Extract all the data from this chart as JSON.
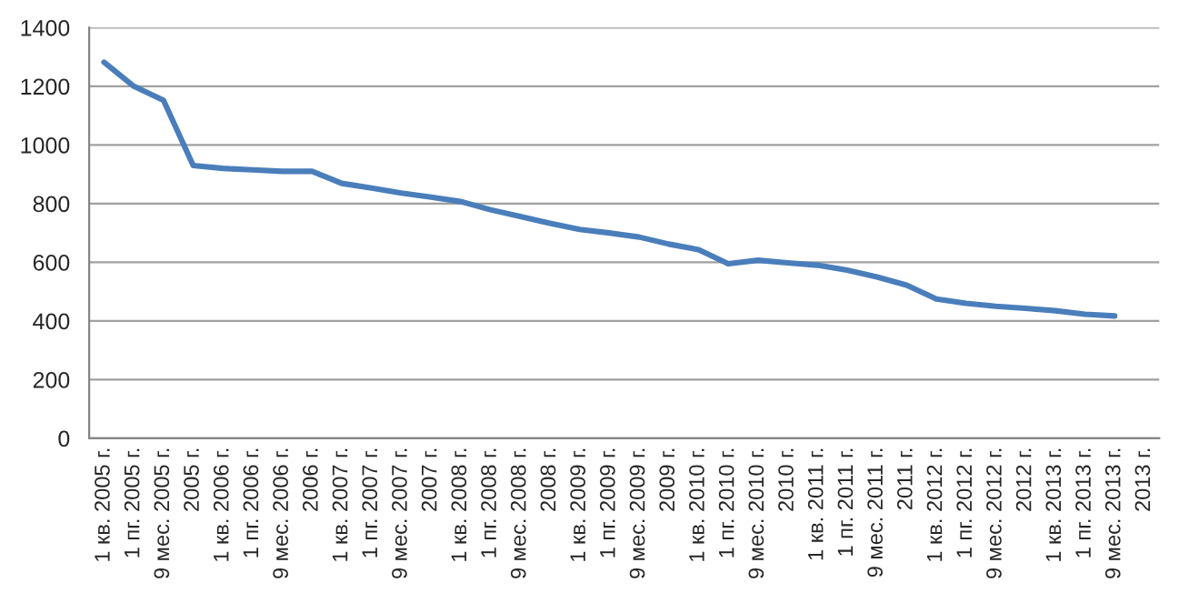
{
  "chart_data": {
    "type": "line",
    "categories": [
      "1 кв. 2005 г.",
      "1 пг. 2005 г.",
      "9 мес. 2005 г.",
      "2005 г.",
      "1 кв. 2006 г.",
      "1 пг. 2006 г.",
      "9 мес. 2006 г.",
      "2006 г.",
      "1 кв. 2007 г.",
      "1 пг. 2007 г.",
      "9 мес. 2007 г.",
      "2007 г.",
      "1 кв. 2008 г.",
      "1 пг. 2008 г.",
      "9 мес. 2008 г.",
      "2008 г.",
      "1 кв. 2009 г.",
      "1 пг. 2009 г.",
      "9 мес. 2009 г.",
      "2009 г.",
      "1 кв. 2010 г.",
      "1 пг. 2010 г.",
      "9 мес. 2010 г.",
      "2010 г.",
      "1 кв. 2011 г.",
      "1 пг. 2011 г.",
      "9 мес. 2011 г.",
      "2011 г.",
      "1 кв. 2012 г.",
      "1 пг. 2012 г.",
      "9 мес. 2012 г.",
      "2012 г.",
      "1 кв. 2013 г.",
      "1 пг. 2013 г.",
      "9 мес. 2013 г.",
      "2013 г."
    ],
    "series": [
      {
        "color": "#4a7ebb",
        "values": [
          1282,
          1200,
          1152,
          930,
          920,
          915,
          910,
          910,
          869,
          853,
          836,
          822,
          807,
          779,
          756,
          733,
          712,
          700,
          686,
          662,
          643,
          595,
          607,
          598,
          590,
          573,
          550,
          522,
          475,
          460,
          450,
          443,
          435,
          423,
          417,
          null
        ]
      }
    ],
    "ylim": [
      0,
      1400
    ],
    "yticks": [
      0,
      200,
      400,
      600,
      800,
      1000,
      1200,
      1400
    ],
    "grid": "y",
    "legend": false,
    "marker": "none",
    "line_style": "solid"
  }
}
